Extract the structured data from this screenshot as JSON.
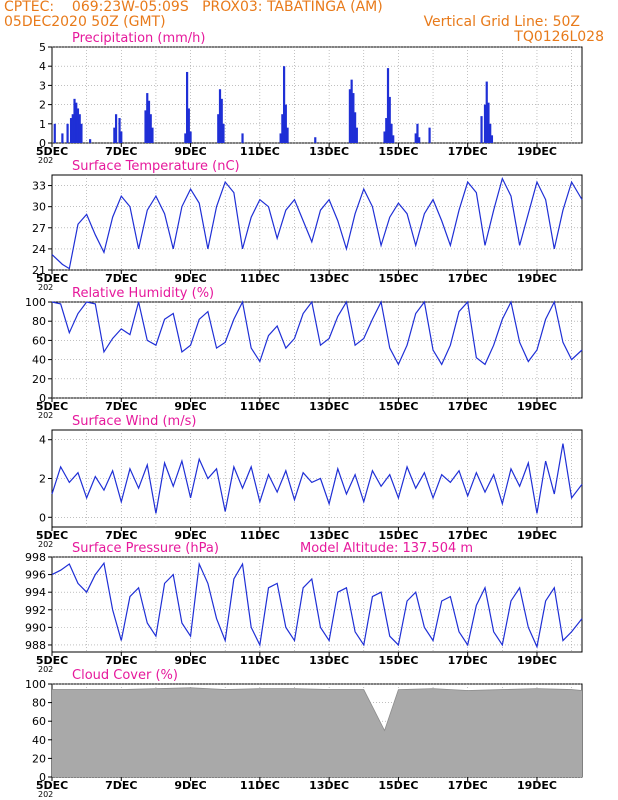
{
  "header": {
    "line1": "CPTEC:    069:23W-05:09S   PROX03: TABATINGA (AM)",
    "line2_left": "05DEC2020 50Z (GMT)",
    "line2_right": "Vertical Grid Line: 50Z",
    "line3_right": "TQ0126L028",
    "color": "#e87a1a"
  },
  "colors": {
    "title": "#e6199c",
    "series": "#1f2fd6",
    "cloud": "#a9a9a9",
    "axis": "#000000",
    "grid": "#9a9a9a"
  },
  "x_tick_labels": [
    "5DEC",
    "7DEC",
    "9DEC",
    "11DEC",
    "13DEC",
    "15DEC",
    "17DEC",
    "19DEC"
  ],
  "x_start_label_tail": "202",
  "x_range_days": [
    0,
    15.3
  ],
  "chart_data": [
    {
      "type": "bar",
      "title": "Precipitation (mm/h)",
      "ylim": [
        0,
        5
      ],
      "yticks": [
        0,
        1,
        2,
        3,
        4,
        5
      ],
      "x_days": [
        0.08,
        0.3,
        0.45,
        0.55,
        0.6,
        0.65,
        0.7,
        0.75,
        0.8,
        0.85,
        1.1,
        1.8,
        1.85,
        1.95,
        2.0,
        2.7,
        2.75,
        2.8,
        2.85,
        2.9,
        3.85,
        3.9,
        3.95,
        4.0,
        4.8,
        4.85,
        4.9,
        4.95,
        5.5,
        6.6,
        6.65,
        6.7,
        6.75,
        6.8,
        7.6,
        8.6,
        8.65,
        8.7,
        8.75,
        8.8,
        9.6,
        9.65,
        9.7,
        9.75,
        9.8,
        9.85,
        10.5,
        10.55,
        10.6,
        10.9,
        12.4,
        12.5,
        12.55,
        12.6,
        12.65,
        12.7
      ],
      "values": [
        1.0,
        0.5,
        1.0,
        1.3,
        1.5,
        2.3,
        2.1,
        1.8,
        1.5,
        1.0,
        0.2,
        0.8,
        1.5,
        1.3,
        0.6,
        1.7,
        2.6,
        2.2,
        1.5,
        0.8,
        0.5,
        3.7,
        1.8,
        0.6,
        1.5,
        2.8,
        2.3,
        1.0,
        0.5,
        0.5,
        1.5,
        4.0,
        2.0,
        0.8,
        0.3,
        2.8,
        3.3,
        2.6,
        1.6,
        0.8,
        0.6,
        1.3,
        3.9,
        2.4,
        1.0,
        0.4,
        0.5,
        1.0,
        0.3,
        0.8,
        1.4,
        2.0,
        3.2,
        2.1,
        1.0,
        0.4
      ]
    },
    {
      "type": "line",
      "title": "Surface Temperature (nC)",
      "ylim": [
        21,
        34.5
      ],
      "yticks": [
        21,
        24,
        27,
        30,
        33
      ],
      "x_days": [
        0,
        0.3,
        0.5,
        0.75,
        1.0,
        1.25,
        1.5,
        1.75,
        2.0,
        2.25,
        2.5,
        2.75,
        3.0,
        3.25,
        3.5,
        3.75,
        4.0,
        4.25,
        4.5,
        4.75,
        5.0,
        5.25,
        5.5,
        5.75,
        6.0,
        6.25,
        6.5,
        6.75,
        7.0,
        7.25,
        7.5,
        7.75,
        8.0,
        8.25,
        8.5,
        8.75,
        9.0,
        9.25,
        9.5,
        9.75,
        10.0,
        10.25,
        10.5,
        10.75,
        11.0,
        11.25,
        11.5,
        11.75,
        12.0,
        12.25,
        12.5,
        12.75,
        13.0,
        13.25,
        13.5,
        13.75,
        14.0,
        14.25,
        14.5,
        14.75,
        15.0,
        15.3
      ],
      "values": [
        23.2,
        21.8,
        21.2,
        27.5,
        28.9,
        26.0,
        23.5,
        28.5,
        31.5,
        30.0,
        24.0,
        29.5,
        31.5,
        29.0,
        24.0,
        30.0,
        32.5,
        30.5,
        24.0,
        30.0,
        33.5,
        32.0,
        24.0,
        28.5,
        31.0,
        30.0,
        25.5,
        29.5,
        31.0,
        28.0,
        25.0,
        29.5,
        31.0,
        28.0,
        24.0,
        29.0,
        32.5,
        30.0,
        24.5,
        28.5,
        30.5,
        29.0,
        24.5,
        29.0,
        31.0,
        28.0,
        24.5,
        29.5,
        33.5,
        32.0,
        24.5,
        29.5,
        34.0,
        31.5,
        24.5,
        29.0,
        33.5,
        31.0,
        24.0,
        29.5,
        33.5,
        31.0
      ]
    },
    {
      "type": "line",
      "title": "Relative Humidity (%)",
      "ylim": [
        0,
        100
      ],
      "yticks": [
        0,
        20,
        40,
        60,
        80,
        100
      ],
      "x_days": [
        0,
        0.25,
        0.5,
        0.75,
        1.0,
        1.25,
        1.5,
        1.75,
        2.0,
        2.25,
        2.5,
        2.75,
        3.0,
        3.25,
        3.5,
        3.75,
        4.0,
        4.25,
        4.5,
        4.75,
        5.0,
        5.25,
        5.5,
        5.75,
        6.0,
        6.25,
        6.5,
        6.75,
        7.0,
        7.25,
        7.5,
        7.75,
        8.0,
        8.25,
        8.5,
        8.75,
        9.0,
        9.25,
        9.5,
        9.75,
        10.0,
        10.25,
        10.5,
        10.75,
        11.0,
        11.25,
        11.5,
        11.75,
        12.0,
        12.25,
        12.5,
        12.75,
        13.0,
        13.25,
        13.5,
        13.75,
        14.0,
        14.25,
        14.5,
        14.75,
        15.0,
        15.3
      ],
      "values": [
        100,
        98,
        68,
        88,
        100,
        98,
        48,
        62,
        72,
        66,
        100,
        60,
        55,
        82,
        88,
        48,
        55,
        82,
        90,
        52,
        58,
        82,
        100,
        52,
        38,
        65,
        75,
        52,
        62,
        88,
        100,
        55,
        62,
        85,
        100,
        55,
        62,
        82,
        100,
        52,
        35,
        55,
        88,
        100,
        50,
        35,
        55,
        90,
        100,
        42,
        35,
        55,
        82,
        100,
        58,
        38,
        50,
        82,
        100,
        58,
        40,
        50
      ]
    },
    {
      "type": "line",
      "title": "Surface Wind (m/s)",
      "ylim": [
        -0.5,
        4.5
      ],
      "yticks": [
        0,
        2,
        4
      ],
      "x_days": [
        0,
        0.25,
        0.5,
        0.75,
        1.0,
        1.25,
        1.5,
        1.75,
        2.0,
        2.25,
        2.5,
        2.75,
        3.0,
        3.25,
        3.5,
        3.75,
        4.0,
        4.25,
        4.5,
        4.75,
        5.0,
        5.25,
        5.5,
        5.75,
        6.0,
        6.25,
        6.5,
        6.75,
        7.0,
        7.25,
        7.5,
        7.75,
        8.0,
        8.25,
        8.5,
        8.75,
        9.0,
        9.25,
        9.5,
        9.75,
        10.0,
        10.25,
        10.5,
        10.75,
        11.0,
        11.25,
        11.5,
        11.75,
        12.0,
        12.25,
        12.5,
        12.75,
        13.0,
        13.25,
        13.5,
        13.75,
        14.0,
        14.25,
        14.5,
        14.75,
        15.0,
        15.3
      ],
      "values": [
        1.2,
        2.6,
        1.8,
        2.3,
        1.0,
        2.1,
        1.4,
        2.4,
        0.8,
        2.5,
        1.5,
        2.7,
        0.2,
        2.8,
        1.6,
        2.9,
        1.0,
        3.0,
        2.0,
        2.5,
        0.3,
        2.6,
        1.5,
        2.6,
        0.8,
        2.2,
        1.3,
        2.4,
        0.9,
        2.3,
        1.8,
        2.0,
        0.7,
        2.5,
        1.2,
        2.2,
        0.8,
        2.4,
        1.6,
        2.2,
        1.0,
        2.6,
        1.5,
        2.3,
        1.0,
        2.2,
        1.8,
        2.4,
        1.1,
        2.3,
        1.3,
        2.2,
        0.7,
        2.5,
        1.6,
        2.8,
        0.2,
        2.9,
        1.2,
        3.8,
        1.0,
        1.7
      ]
    },
    {
      "type": "line",
      "title": "Surface Pressure (hPa)",
      "annotation": "Model Altitude: 137.504 m",
      "ylim": [
        987.2,
        998
      ],
      "yticks": [
        988,
        990,
        992,
        994,
        996,
        998
      ],
      "x_days": [
        0,
        0.25,
        0.5,
        0.75,
        1.0,
        1.25,
        1.5,
        1.75,
        2.0,
        2.25,
        2.5,
        2.75,
        3.0,
        3.25,
        3.5,
        3.75,
        4.0,
        4.25,
        4.5,
        4.75,
        5.0,
        5.25,
        5.5,
        5.75,
        6.0,
        6.25,
        6.5,
        6.75,
        7.0,
        7.25,
        7.5,
        7.75,
        8.0,
        8.25,
        8.5,
        8.75,
        9.0,
        9.25,
        9.5,
        9.75,
        10.0,
        10.25,
        10.5,
        10.75,
        11.0,
        11.25,
        11.5,
        11.75,
        12.0,
        12.25,
        12.5,
        12.75,
        13.0,
        13.25,
        13.5,
        13.75,
        14.0,
        14.25,
        14.5,
        14.75,
        15.0,
        15.3
      ],
      "values": [
        996.0,
        996.5,
        997.2,
        995.0,
        994.0,
        996.0,
        997.3,
        992.0,
        988.5,
        993.5,
        994.5,
        990.5,
        989.0,
        995.0,
        996.0,
        990.5,
        989.0,
        997.2,
        995.0,
        991.0,
        988.5,
        995.5,
        997.2,
        990.0,
        988.0,
        994.5,
        995.0,
        990.0,
        988.5,
        994.5,
        995.5,
        990.0,
        988.5,
        994.0,
        994.5,
        989.5,
        988.0,
        993.5,
        994.0,
        989.0,
        988.0,
        993.0,
        994.0,
        990.0,
        988.5,
        993.0,
        993.5,
        989.5,
        988.0,
        992.5,
        994.5,
        989.5,
        988.0,
        993.0,
        994.5,
        990.0,
        987.8,
        993.0,
        994.5,
        988.5,
        989.5,
        991.0
      ]
    },
    {
      "type": "area",
      "title": "Cloud Cover (%)",
      "ylim": [
        0,
        100
      ],
      "yticks": [
        0,
        20,
        40,
        60,
        80,
        100
      ],
      "x_days": [
        0,
        1,
        2,
        3,
        4,
        5,
        6,
        7,
        8,
        9,
        9.6,
        10,
        11,
        12,
        13,
        14,
        15,
        15.3
      ],
      "values": [
        94,
        94,
        94,
        95,
        96,
        94,
        95,
        95,
        94,
        94,
        50,
        94,
        95,
        93,
        94,
        95,
        94,
        93
      ]
    }
  ]
}
